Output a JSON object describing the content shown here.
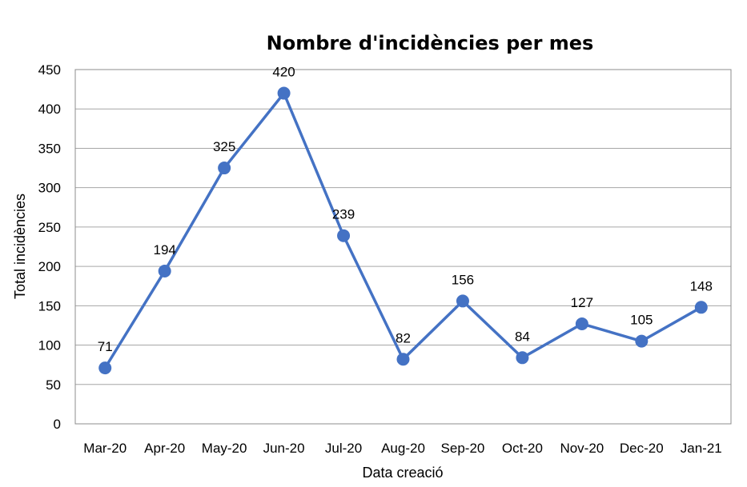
{
  "chart_data": {
    "type": "line",
    "title": "Nombre d'incidències per mes",
    "xlabel": "Data creació",
    "ylabel": "Total incidències",
    "categories": [
      "Mar-20",
      "Apr-20",
      "May-20",
      "Jun-20",
      "Jul-20",
      "Aug-20",
      "Sep-20",
      "Oct-20",
      "Nov-20",
      "Dec-20",
      "Jan-21"
    ],
    "series": [
      {
        "values": [
          71,
          194,
          325,
          420,
          239,
          82,
          156,
          84,
          127,
          105,
          148
        ],
        "color": "#4472c4"
      }
    ],
    "ylim": [
      0,
      450
    ],
    "yticks": [
      0,
      50,
      100,
      150,
      200,
      250,
      300,
      350,
      400,
      450
    ],
    "grid": true,
    "legend": "none"
  }
}
